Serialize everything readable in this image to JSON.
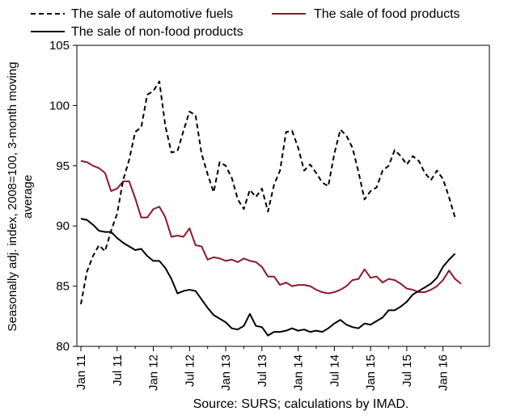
{
  "chart_data": {
    "type": "line",
    "xlabel": "",
    "ylabel": "Seasonally adj. index, 2008=100, 3-month moving average",
    "ylabel_lines": [
      "Seasonally adj. index, 2008=100, 3-month moving",
      "average"
    ],
    "source": "Source: SURS; calculations by IMAD.",
    "ylim": [
      80,
      105
    ],
    "yticks": [
      80,
      85,
      90,
      95,
      100,
      105
    ],
    "x_month_range": [
      "2011-01",
      "2016-06"
    ],
    "xtick_labels": [
      {
        "month_index": 0,
        "label": "Jan 11"
      },
      {
        "month_index": 6,
        "label": "Jul 11"
      },
      {
        "month_index": 12,
        "label": "Jan 12"
      },
      {
        "month_index": 18,
        "label": "Jul 12"
      },
      {
        "month_index": 24,
        "label": "Jan 13"
      },
      {
        "month_index": 30,
        "label": "Jul 13"
      },
      {
        "month_index": 36,
        "label": "Jan 14"
      },
      {
        "month_index": 42,
        "label": "Jul 14"
      },
      {
        "month_index": 48,
        "label": "Jan 15"
      },
      {
        "month_index": 54,
        "label": "Jul 15"
      },
      {
        "month_index": 60,
        "label": "Jan 16"
      }
    ],
    "legend_position": "top",
    "grid": false,
    "series": [
      {
        "name": "The sale of automotive fuels",
        "color": "#000000",
        "dash": "dashed",
        "values": [
          83.5,
          86.2,
          87.5,
          88.4,
          87.9,
          89.6,
          91.0,
          93.8,
          95.5,
          97.8,
          98.2,
          100.9,
          101.2,
          102.0,
          98.3,
          96.1,
          96.2,
          97.9,
          99.5,
          99.2,
          96.0,
          94.3,
          92.8,
          95.3,
          95.0,
          94.0,
          92.2,
          91.4,
          93.0,
          92.4,
          93.1,
          91.2,
          93.4,
          94.6,
          97.8,
          97.9,
          96.5,
          94.6,
          95.1,
          94.4,
          93.6,
          93.3,
          96.0,
          98.0,
          97.5,
          96.5,
          94.5,
          92.2,
          92.9,
          93.2,
          94.6,
          95.0,
          96.3,
          95.8,
          95.1,
          95.8,
          95.4,
          94.4,
          93.8,
          94.6,
          93.9,
          92.4,
          90.7
        ]
      },
      {
        "name": "The sale of food products",
        "color": "#8c1a2c",
        "dash": "solid",
        "values": [
          95.4,
          95.3,
          95.0,
          94.8,
          94.4,
          92.9,
          93.1,
          93.7,
          93.7,
          92.3,
          90.7,
          90.7,
          91.4,
          91.6,
          90.7,
          89.1,
          89.2,
          89.1,
          89.8,
          88.4,
          88.3,
          87.2,
          87.4,
          87.3,
          87.1,
          87.2,
          87.0,
          87.3,
          87.1,
          87.0,
          86.6,
          85.8,
          85.8,
          85.1,
          85.3,
          85.0,
          85.1,
          85.1,
          85.0,
          84.7,
          84.5,
          84.4,
          84.5,
          84.7,
          85.0,
          85.5,
          85.6,
          86.4,
          85.7,
          85.8,
          85.3,
          85.6,
          85.5,
          85.2,
          84.8,
          84.7,
          84.5,
          84.5,
          84.7,
          85.0,
          85.5,
          86.3,
          85.6,
          85.2
        ]
      },
      {
        "name": "The sale of non-food products",
        "color": "#000000",
        "dash": "solid",
        "values": [
          90.6,
          90.5,
          90.1,
          89.6,
          89.5,
          89.5,
          89.0,
          88.6,
          88.3,
          88.0,
          88.1,
          87.5,
          87.1,
          87.1,
          86.5,
          85.6,
          84.4,
          84.6,
          84.7,
          84.6,
          83.9,
          83.2,
          82.6,
          82.3,
          82.0,
          81.5,
          81.4,
          81.7,
          82.7,
          81.7,
          81.6,
          80.9,
          81.2,
          81.2,
          81.3,
          81.5,
          81.3,
          81.4,
          81.2,
          81.3,
          81.2,
          81.5,
          81.9,
          82.2,
          81.8,
          81.6,
          81.5,
          81.9,
          81.8,
          82.1,
          82.4,
          83.0,
          83.0,
          83.3,
          83.7,
          84.3,
          84.6,
          84.9,
          85.2,
          85.7,
          86.6,
          87.2,
          87.7
        ]
      }
    ]
  }
}
